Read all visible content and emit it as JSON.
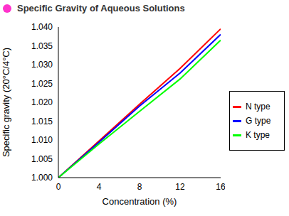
{
  "chart_data": {
    "type": "line",
    "title": "Specific Gravity of Aqueous Solutions",
    "x_label": "Concentration (%)",
    "y_label": "Specific gravity (20°C/4°C)",
    "x": [
      0,
      4,
      8,
      12,
      16
    ],
    "series": [
      {
        "name": "N type",
        "color": "#ff0000",
        "values": [
          1.0,
          1.0097,
          1.0195,
          1.029,
          1.0395
        ]
      },
      {
        "name": "G type",
        "color": "#0000ff",
        "values": [
          1.0,
          1.0094,
          1.019,
          1.0278,
          1.038
        ]
      },
      {
        "name": "K type",
        "color": "#00ff00",
        "values": [
          1.0,
          1.0089,
          1.0176,
          1.0262,
          1.0365
        ]
      }
    ],
    "xlim": [
      0,
      16
    ],
    "xticks": [
      0,
      4,
      8,
      12,
      16
    ],
    "ylim": [
      1.0,
      1.04
    ],
    "yticks": [
      {
        "value": 1.0,
        "label": "1.000"
      },
      {
        "value": 1.005,
        "label": "1.005"
      },
      {
        "value": 1.01,
        "label": "1.010"
      },
      {
        "value": 1.015,
        "label": "1.015"
      },
      {
        "value": 1.02,
        "label": "1.020"
      },
      {
        "value": 1.025,
        "label": "1.025"
      },
      {
        "value": 1.03,
        "label": "1.030"
      },
      {
        "value": 1.035,
        "label": "1.035"
      },
      {
        "value": 1.04,
        "label": "1.040"
      }
    ],
    "grid": false,
    "legend": "right",
    "marker": "none"
  }
}
